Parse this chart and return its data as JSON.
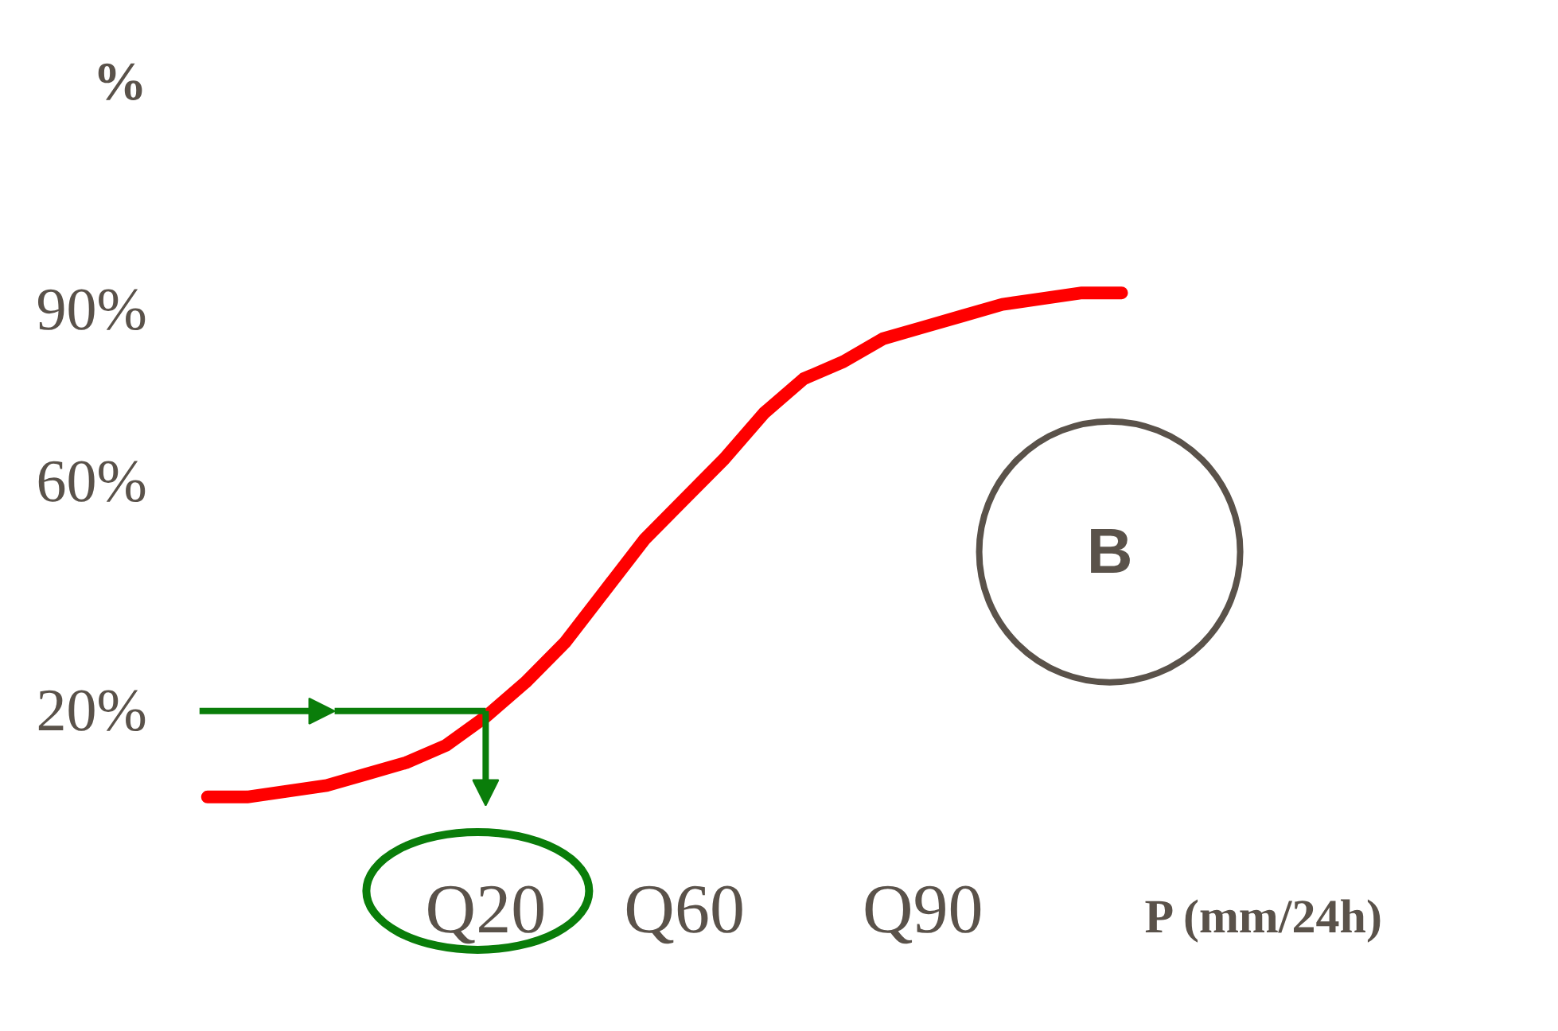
{
  "chart_data": {
    "type": "line",
    "ylabel": "%",
    "xlabel": "P (mm/24h)",
    "annotations": [
      "B"
    ],
    "categories": [
      null,
      null,
      null,
      null,
      null,
      null,
      null,
      "Q20",
      null,
      null,
      null,
      null,
      "Q60",
      null,
      null,
      null,
      null,
      null,
      "Q90",
      null,
      null,
      null,
      null,
      null
    ],
    "series": [
      {
        "color": "#ff0000",
        "values": [
          5,
          5,
          6,
          7,
          9,
          11,
          14,
          19,
          25,
          32,
          41,
          50,
          57,
          64,
          72,
          78,
          81,
          85,
          87,
          89,
          91,
          92,
          93,
          93
        ]
      }
    ],
    "ylim": [
      -36,
      144
    ],
    "yticks": [
      {
        "value": 20,
        "label": "20%"
      },
      {
        "value": 60,
        "label": "60%"
      },
      {
        "value": 90,
        "label": "90%"
      }
    ]
  }
}
